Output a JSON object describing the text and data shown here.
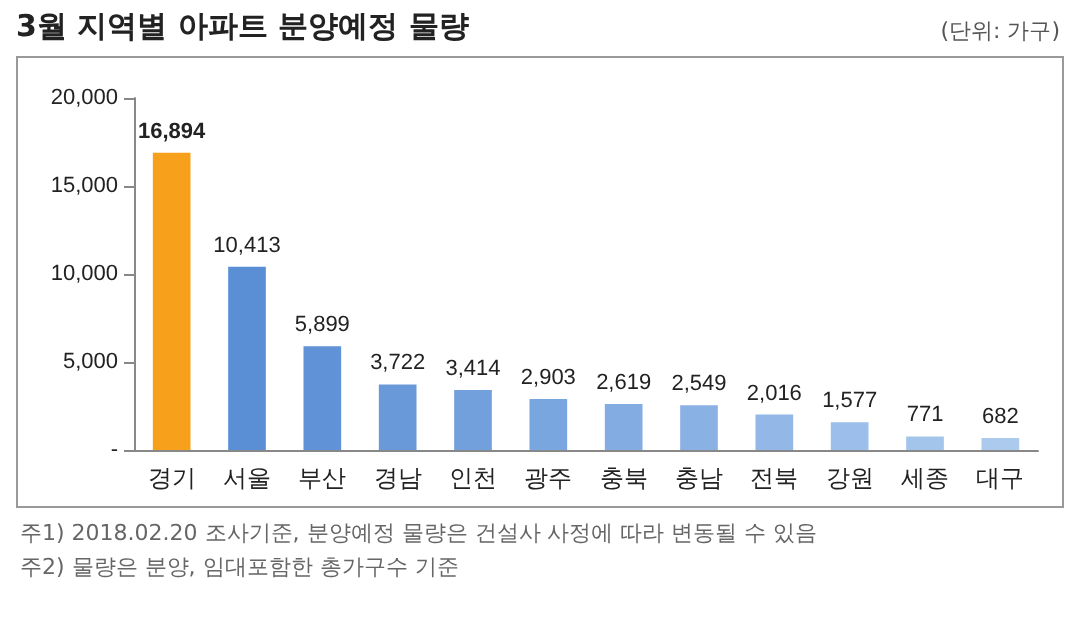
{
  "chart_data": {
    "type": "bar",
    "title": "3월 지역별 아파트 분양예정 물량",
    "subtitle": "(단위: 가구)",
    "categories": [
      "경기",
      "서울",
      "부산",
      "경남",
      "인천",
      "광주",
      "충북",
      "충남",
      "전북",
      "강원",
      "세종",
      "대구"
    ],
    "values": [
      16894,
      10413,
      5899,
      3722,
      3414,
      2903,
      2619,
      2549,
      2016,
      1577,
      771,
      682
    ],
    "colors": [
      "#f7a01c",
      "#5a8fd6",
      "#5f92d6",
      "#6a99d9",
      "#72a0dc",
      "#7aa6df",
      "#82ace2",
      "#8ab1e4",
      "#93b8e7",
      "#9bbfea",
      "#a3c5ec",
      "#abcaee"
    ],
    "value_labels": [
      "16,894",
      "10,413",
      "5,899",
      "3,722",
      "3,414",
      "2,903",
      "2,619",
      "2,549",
      "2,016",
      "1,577",
      "771",
      "682"
    ],
    "ylim": [
      0,
      20000
    ],
    "yticks": [
      {
        "value": 0,
        "label": "-"
      },
      {
        "value": 5000,
        "label": "5,000"
      },
      {
        "value": 10000,
        "label": "10,000"
      },
      {
        "value": 15000,
        "label": "15,000"
      },
      {
        "value": 20000,
        "label": "20,000"
      }
    ],
    "grid": false,
    "annotations": [
      "주1) 2018.02.20 조사기준, 분양예정 물량은 건설사 사정에 따라 변동될 수 있음",
      "주2) 물량은 분양, 임대포함한 총가구수 기준"
    ]
  }
}
